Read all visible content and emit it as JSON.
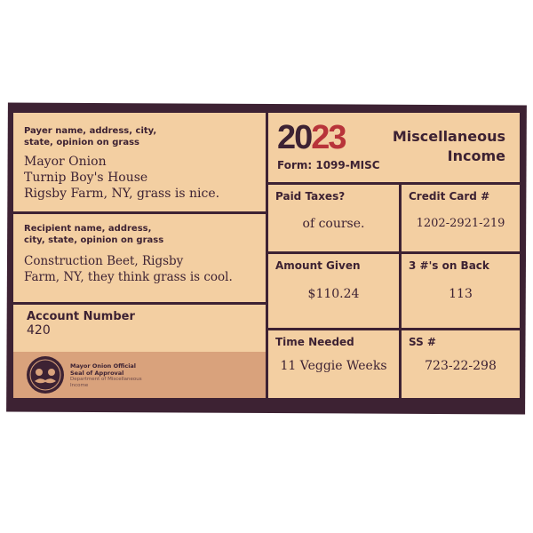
{
  "payer": {
    "label": "Payer name, address, city, state, opinion on grass",
    "lines": [
      "Mayor Onion",
      "Turnip Boy's House",
      "Rigsby Farm, NY, grass is nice."
    ]
  },
  "recipient": {
    "label": "Recipient name, address, city, state, opinion on grass",
    "lines": [
      "Construction Beet, Rigsby",
      "Farm, NY, they think grass is cool."
    ]
  },
  "account": {
    "label": "Account Number",
    "value": "420"
  },
  "seal": {
    "title": "Mayor Onion Official",
    "subtitle": "Seal of Approval",
    "dept": "Department of Miscellaneous Income"
  },
  "header": {
    "year_a": "20",
    "year_b": "23",
    "form": "Form: 1099-MISC",
    "title_1": "Miscellaneous",
    "title_2": "Income"
  },
  "fields": [
    {
      "label": "Paid Taxes?",
      "value": "of course."
    },
    {
      "label": "Credit Card #",
      "value": "1202-2921-219"
    },
    {
      "label": "Amount Given",
      "value": "$110.24"
    },
    {
      "label": "3 #'s on Back",
      "value": "113"
    },
    {
      "label": "Time Needed",
      "value": "11 Veggie Weeks"
    },
    {
      "label": "SS #",
      "value": "723-22-298"
    }
  ],
  "colors": {
    "ink": "#3d2233",
    "paper": "#f3cfa2",
    "seal_band": "#d9a27c",
    "year_accent": "#b8343a"
  }
}
